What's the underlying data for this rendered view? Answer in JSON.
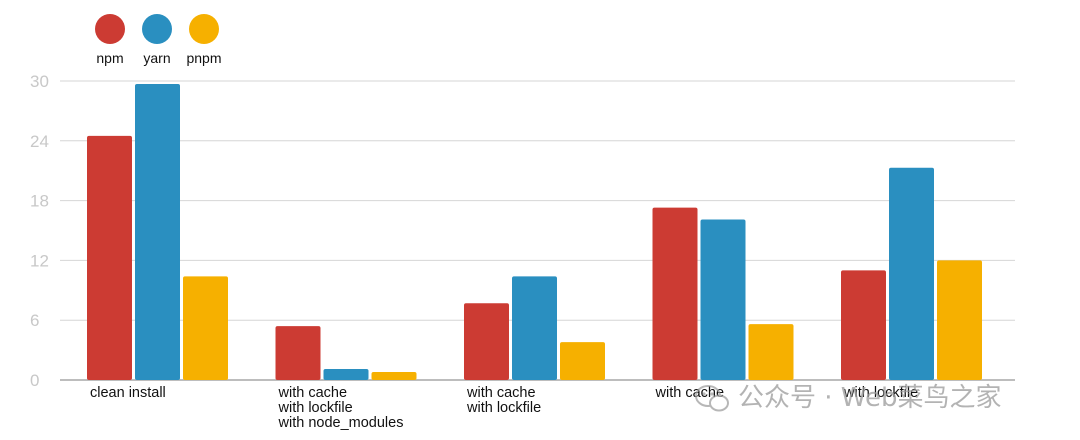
{
  "chart_data": {
    "type": "bar",
    "categories": [
      [
        "clean install"
      ],
      [
        "with cache",
        "with lockfile",
        "with node_modules"
      ],
      [
        "with cache",
        "with lockfile"
      ],
      [
        "with cache"
      ],
      [
        "with lockfile"
      ]
    ],
    "series": [
      {
        "name": "npm",
        "color": "#cc3b33",
        "values": [
          24.5,
          5.4,
          7.7,
          17.3,
          11.0
        ]
      },
      {
        "name": "yarn",
        "color": "#2a8fc0",
        "values": [
          29.7,
          1.1,
          10.4,
          16.1,
          21.3
        ]
      },
      {
        "name": "pnpm",
        "color": "#f6b000",
        "values": [
          10.4,
          0.8,
          3.8,
          5.6,
          12.0
        ]
      }
    ],
    "ylim": [
      0,
      30
    ],
    "yticks": [
      "0",
      "6",
      "12",
      "18",
      "24",
      "30"
    ],
    "grid": true,
    "legend": "top-left"
  },
  "watermark": {
    "icon": "wechat-icon",
    "text": "公众号 · Web菜鸟之家"
  }
}
